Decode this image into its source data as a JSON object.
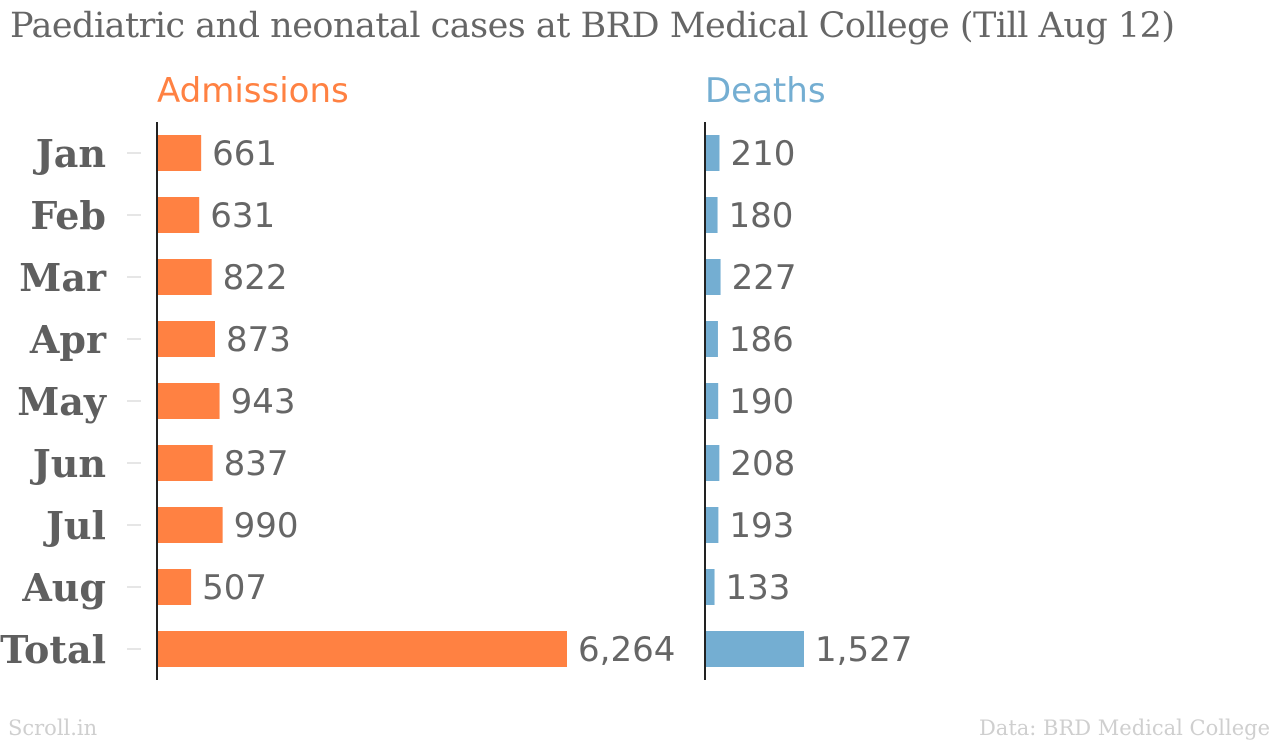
{
  "chart_data": {
    "type": "bar",
    "orientation": "horizontal",
    "title": "Paediatric and neonatal cases at BRD Medical College (Till Aug 12)",
    "categories": [
      "Jan",
      "Feb",
      "Mar",
      "Apr",
      "May",
      "Jun",
      "Jul",
      "Aug",
      "Total"
    ],
    "series": [
      {
        "name": "Admissions",
        "color": "#ff8142",
        "values": [
          661,
          631,
          822,
          873,
          943,
          837,
          990,
          507,
          6264
        ],
        "labels": [
          "661",
          "631",
          "822",
          "873",
          "943",
          "837",
          "990",
          "507",
          "6,264"
        ]
      },
      {
        "name": "Deaths",
        "color": "#74aed2",
        "values": [
          210,
          180,
          227,
          186,
          190,
          208,
          193,
          133,
          1527
        ],
        "labels": [
          "210",
          "180",
          "227",
          "186",
          "190",
          "208",
          "193",
          "133",
          "1,527"
        ]
      }
    ],
    "layout": "side-by-side panels sharing the category axis",
    "grid": false
  },
  "footer": {
    "source_brand": "Scroll.in",
    "credit": "Data: BRD Medical College"
  }
}
